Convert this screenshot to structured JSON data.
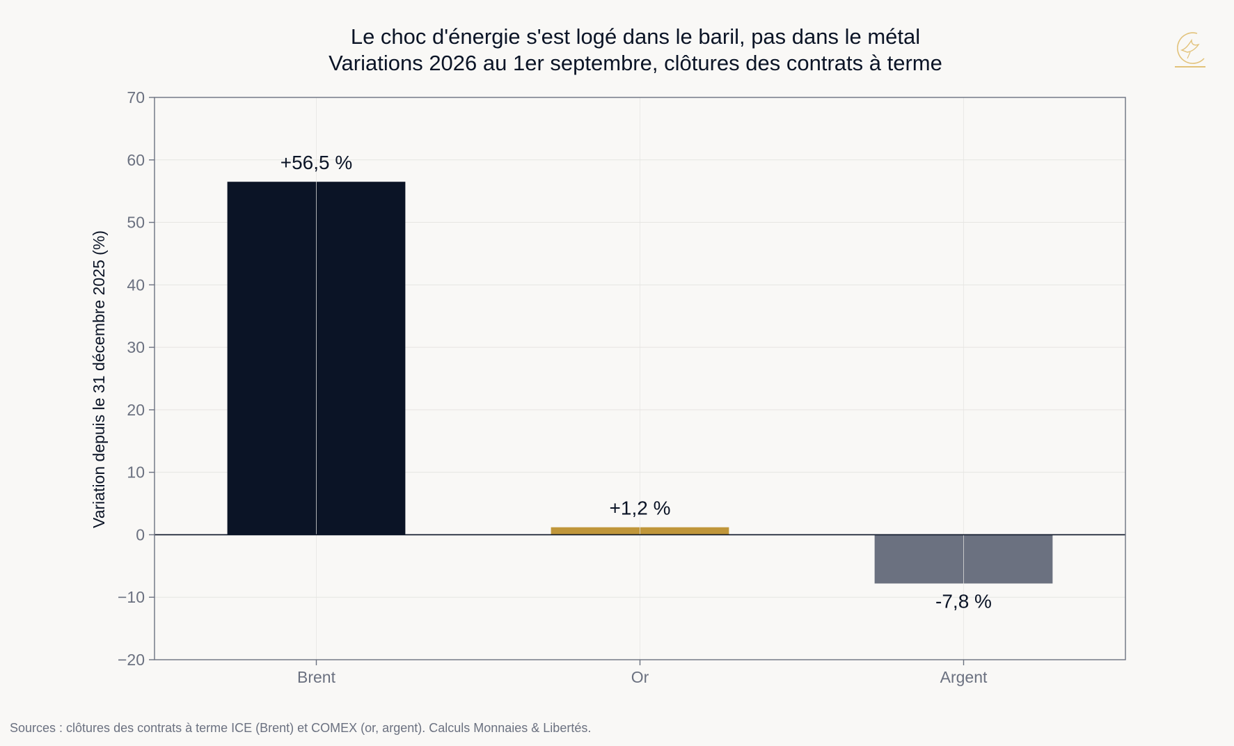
{
  "chart_data": {
    "type": "bar",
    "title": "Le choc d'énergie s'est logé dans le baril, pas dans le métal",
    "subtitle": "Variations 2026 au 1er septembre, clôtures des contrats à terme",
    "ylabel": "Variation depuis le 31 décembre 2025 (%)",
    "xlabel": "",
    "ylim": [
      -20,
      70
    ],
    "yticks": [
      70,
      60,
      50,
      40,
      30,
      20,
      10,
      0,
      -10,
      -20
    ],
    "ytick_labels": [
      "70",
      "60",
      "50",
      "40",
      "30",
      "20",
      "10",
      "0",
      "−10",
      "−20"
    ],
    "categories": [
      "Brent",
      "Or",
      "Argent"
    ],
    "values": [
      56.5,
      1.2,
      -7.8
    ],
    "data_labels": [
      "+56,5 %",
      "+1,2 %",
      "-7,8 %"
    ],
    "colors": [
      "#0b1426",
      "#c0963a",
      "#6b7180"
    ],
    "grid": true
  },
  "source": "Sources : clôtures des contrats à terme ICE (Brent) et COMEX (or, argent). Calculs Monnaies & Libertés.",
  "logo": {
    "icon": "bird-crest-icon",
    "color": "#e2c27a"
  }
}
